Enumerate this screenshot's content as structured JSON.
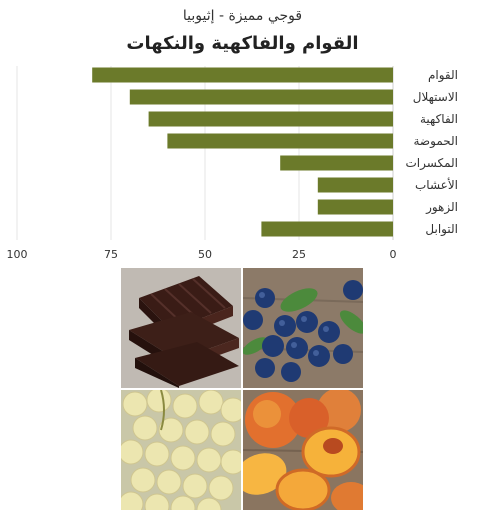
{
  "header": {
    "subtitle": "قوجي مميزة - إثيوبيا",
    "title": "القوام والفاكهية والنكهات"
  },
  "chart_data": {
    "type": "bar",
    "orientation": "horizontal",
    "x_direction": "reversed",
    "categories": [
      "القوام",
      "الاستهلال",
      "الفاكهية",
      "الحموضة",
      "المكسرات",
      "الأعشاب",
      "الزهور",
      "التوابل"
    ],
    "values": [
      80,
      70,
      65,
      60,
      30,
      20,
      20,
      35
    ],
    "xlim": [
      0,
      100
    ],
    "xticks": [
      "0",
      "25",
      "50",
      "75",
      "100"
    ],
    "grid": true,
    "bar_color": "#6b7a2a",
    "grid_color": "#e6e6e6"
  },
  "photos": [
    {
      "name": "dark-chocolate-photo"
    },
    {
      "name": "blueberries-photo"
    },
    {
      "name": "white-grapes-photo"
    },
    {
      "name": "peaches-photo"
    }
  ]
}
